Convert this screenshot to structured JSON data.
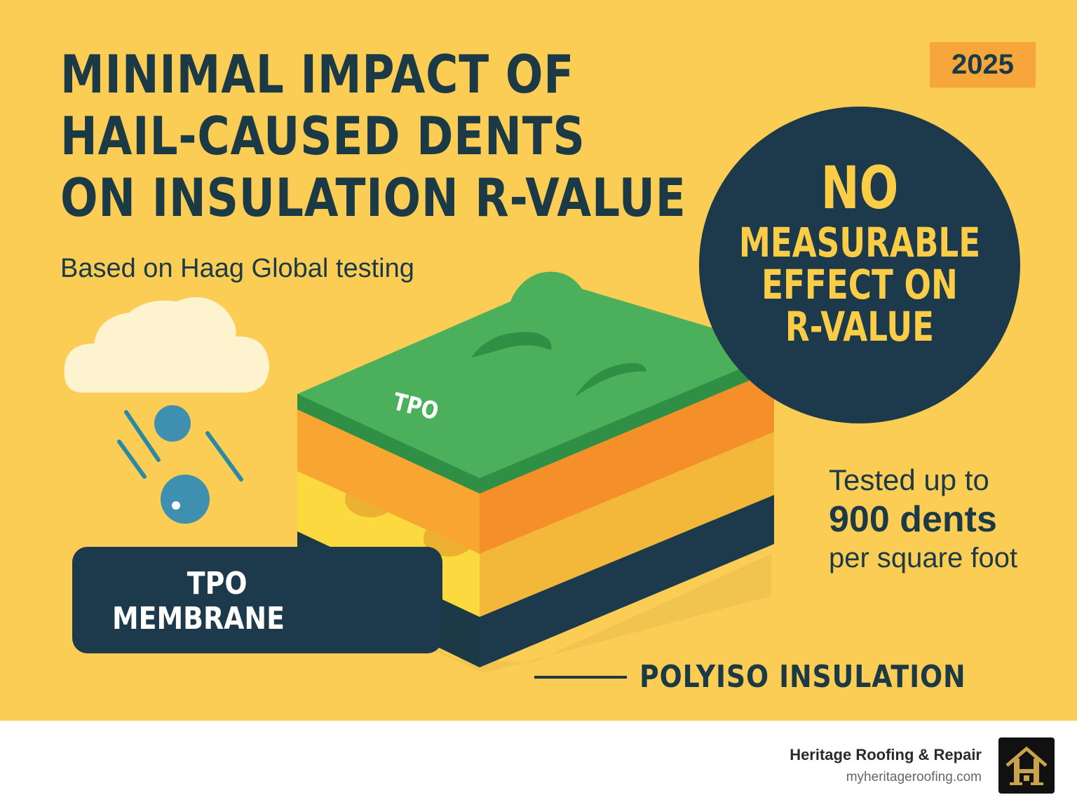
{
  "colors": {
    "background": "#fbcd55",
    "navy": "#1c3a4b",
    "accent_yellow": "#fbcd47",
    "orange": "#f6a63a",
    "tpo_green": "#4caf5c",
    "hail_blue": "#3e8fb0",
    "logo_gold": "#c9a24c"
  },
  "header": {
    "title_lines": [
      "MINIMAL IMPACT OF",
      "HAIL-CAUSED DENTS",
      "ON INSULATION R-VALUE"
    ],
    "year": "2025",
    "subtitle": "Based on Haag Global testing"
  },
  "badge": {
    "line1": "NO",
    "line2": "MEASURABLE",
    "line3": "EFFECT ON",
    "line4": "R-VALUE"
  },
  "stat": {
    "line1": "Tested up to",
    "line2": "900 dents",
    "line3": "per square foot"
  },
  "diagram": {
    "top_label": "TPO",
    "membrane_label_line1": "TPO",
    "membrane_label_line2": "MEMBRANE",
    "insulation_label": "POLYISO INSULATION"
  },
  "icons": {
    "cloud": "cloud-icon",
    "hail": "hailstone-icon",
    "logo": "house-h-logo-icon"
  },
  "footer": {
    "company": "Heritage Roofing & Repair",
    "url": "myheritageroofing.com"
  }
}
